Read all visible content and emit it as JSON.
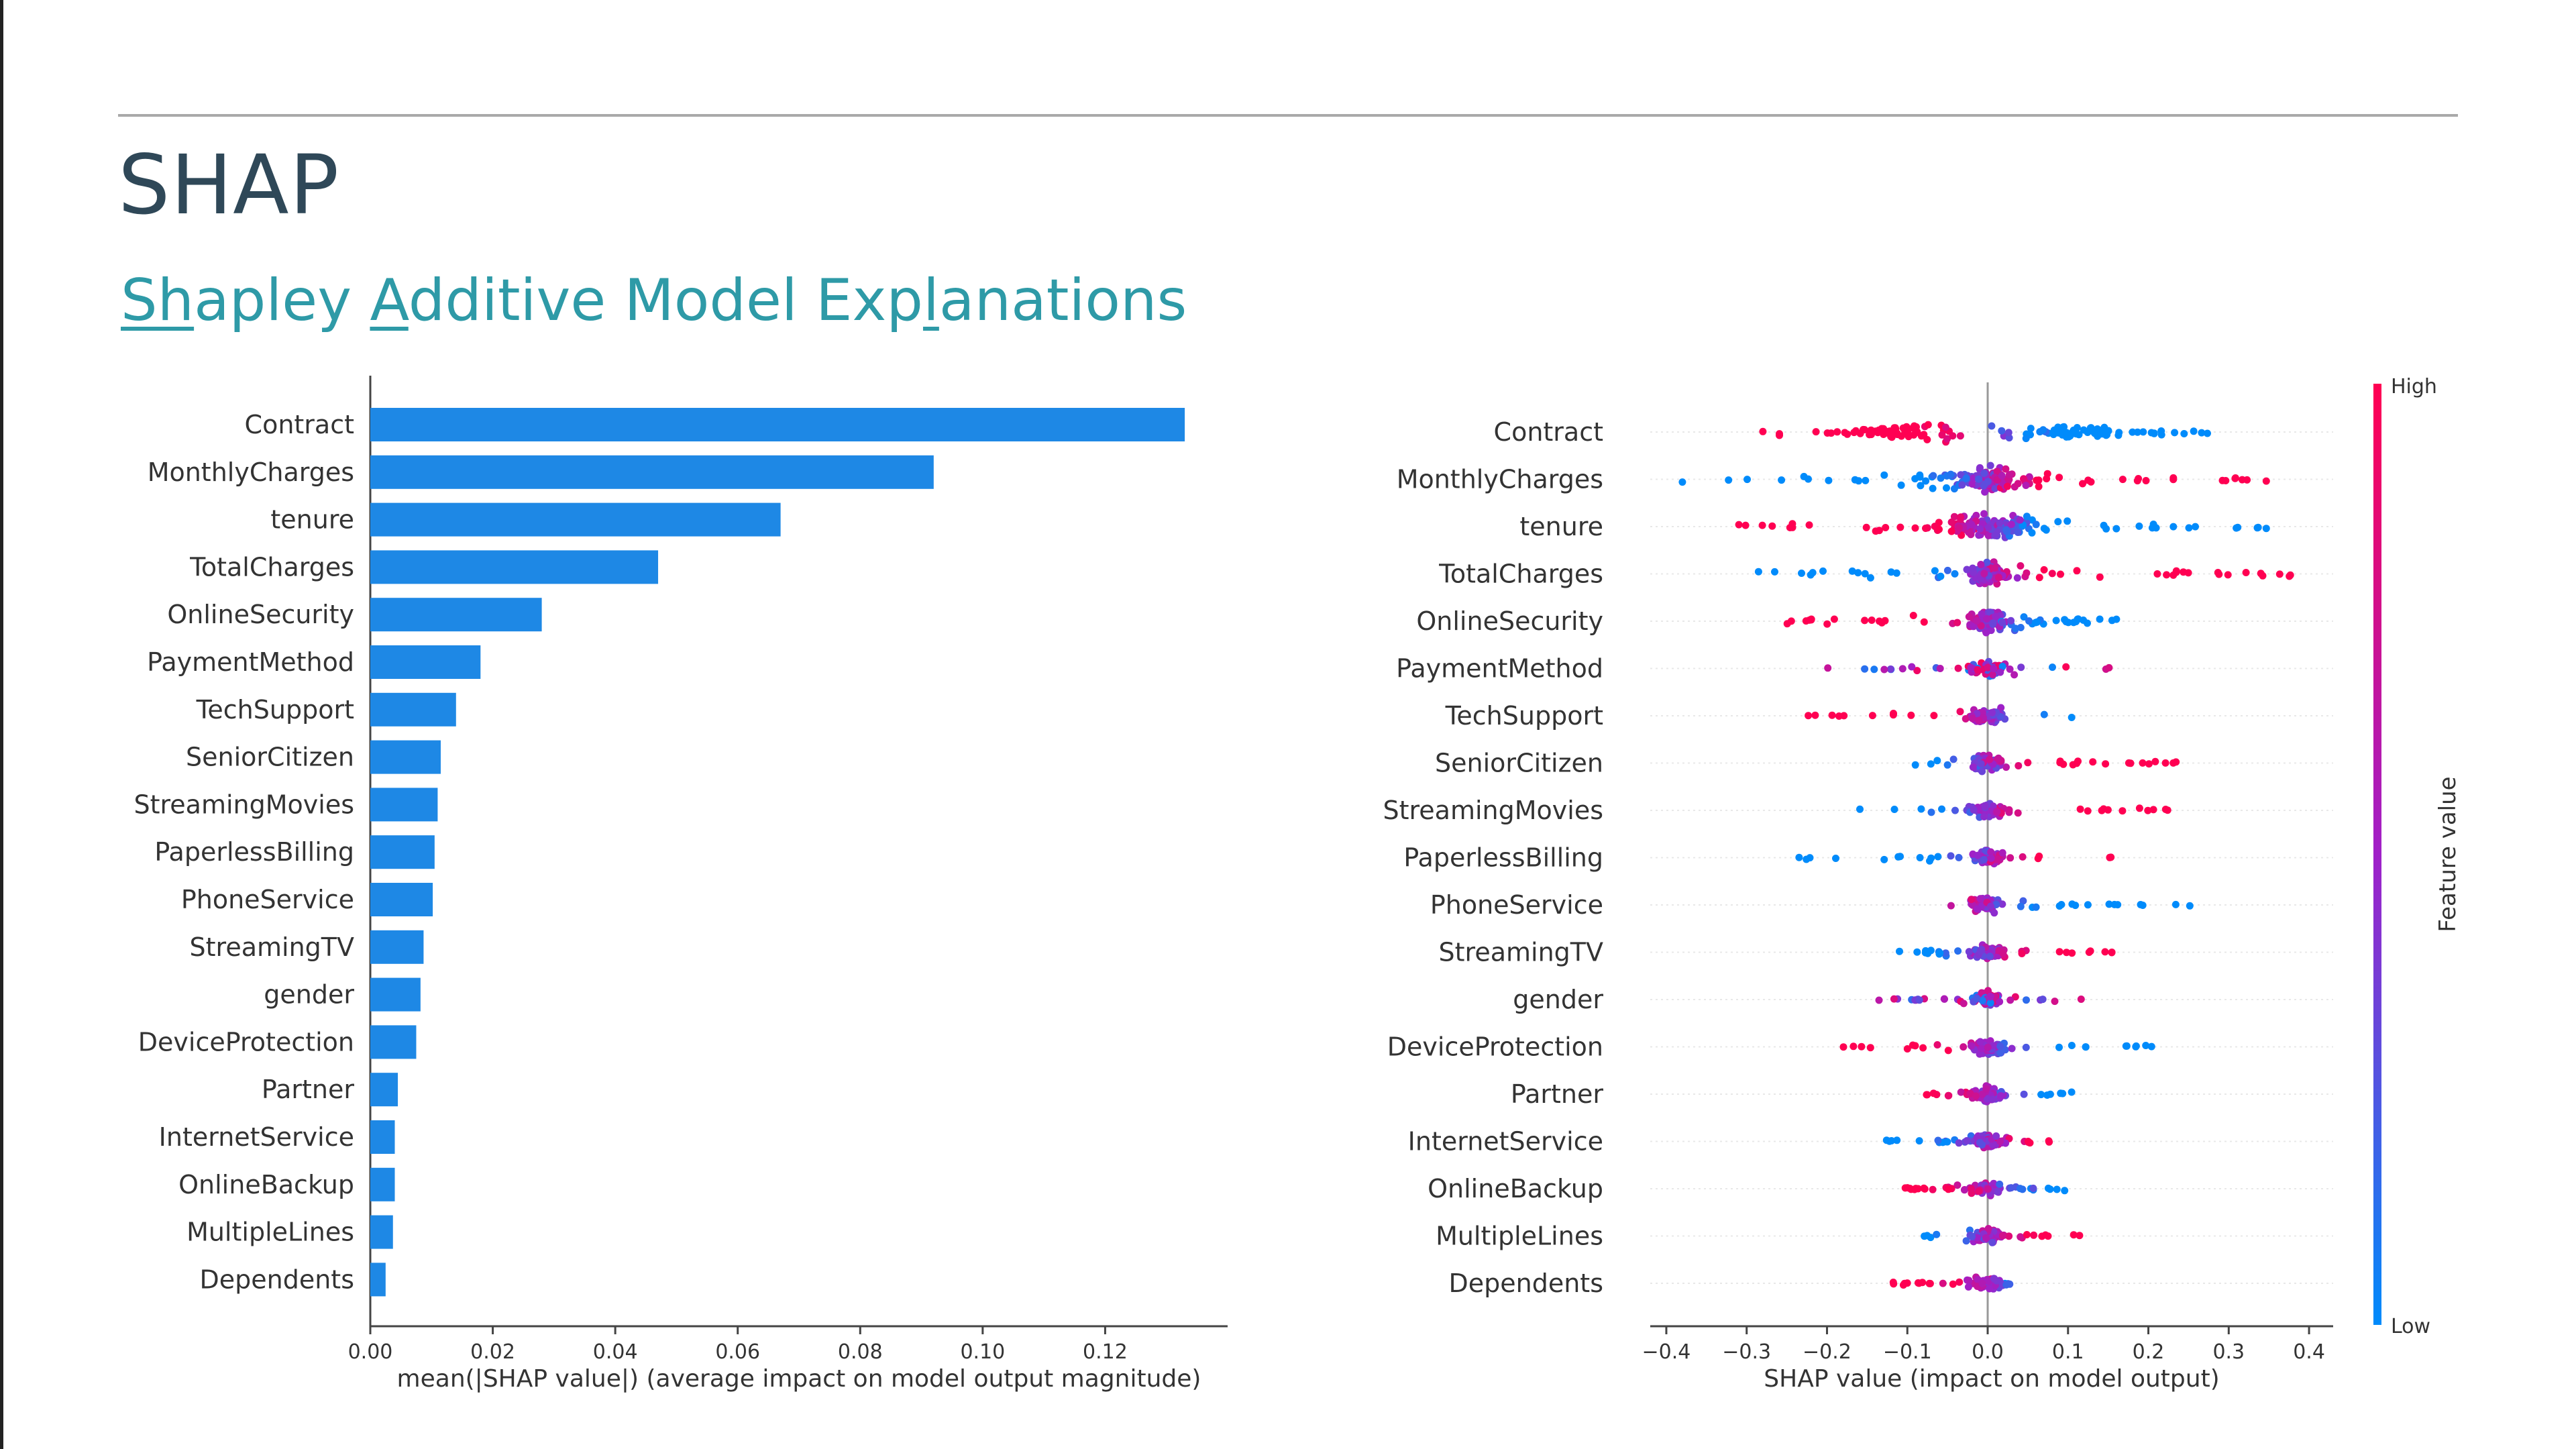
{
  "slide": {
    "title": "SHAP",
    "subtitle_parts": [
      {
        "text": "Sh",
        "underline": true
      },
      {
        "text": "apley ",
        "underline": false
      },
      {
        "text": "A",
        "underline": true
      },
      {
        "text": "dditive Model Exp",
        "underline": false
      },
      {
        "text": "l",
        "underline": true
      },
      {
        "text": "anations",
        "underline": false
      }
    ]
  },
  "colors": {
    "title": "#2f4858",
    "subtitle": "#2e9aa7",
    "bar": "#1e88e5",
    "high": "#ff0052",
    "low": "#008bfb"
  },
  "chart_data": [
    {
      "type": "bar",
      "orientation": "horizontal",
      "categories": [
        "Contract",
        "MonthlyCharges",
        "tenure",
        "TotalCharges",
        "OnlineSecurity",
        "PaymentMethod",
        "TechSupport",
        "SeniorCitizen",
        "StreamingMovies",
        "PaperlessBilling",
        "PhoneService",
        "StreamingTV",
        "gender",
        "DeviceProtection",
        "Partner",
        "InternetService",
        "OnlineBackup",
        "MultipleLines",
        "Dependents"
      ],
      "values": [
        0.133,
        0.092,
        0.067,
        0.047,
        0.028,
        0.018,
        0.014,
        0.0115,
        0.011,
        0.0105,
        0.0102,
        0.0087,
        0.0082,
        0.0075,
        0.0045,
        0.004,
        0.004,
        0.0037,
        0.0025
      ],
      "xlabel": "mean(|SHAP value|) (average impact on model output magnitude)",
      "xticks": [
        "0.00",
        "0.02",
        "0.04",
        "0.06",
        "0.08",
        "0.10",
        "0.12"
      ],
      "xlim": [
        0,
        0.14
      ]
    },
    {
      "type": "scatter",
      "subtype": "beeswarm",
      "categories": [
        "Contract",
        "MonthlyCharges",
        "tenure",
        "TotalCharges",
        "OnlineSecurity",
        "PaymentMethod",
        "TechSupport",
        "SeniorCitizen",
        "StreamingMovies",
        "PaperlessBilling",
        "PhoneService",
        "StreamingTV",
        "gender",
        "DeviceProtection",
        "Partner",
        "InternetService",
        "OnlineBackup",
        "MultipleLines",
        "Dependents"
      ],
      "ranges": [
        [
          -0.28,
          0.28
        ],
        [
          -0.38,
          0.37
        ],
        [
          -0.31,
          0.35
        ],
        [
          -0.3,
          0.39
        ],
        [
          -0.26,
          0.18
        ],
        [
          -0.2,
          0.16
        ],
        [
          -0.23,
          0.12
        ],
        [
          -0.1,
          0.25
        ],
        [
          -0.17,
          0.24
        ],
        [
          -0.25,
          0.17
        ],
        [
          -0.09,
          0.26
        ],
        [
          -0.13,
          0.16
        ],
        [
          -0.14,
          0.12
        ],
        [
          -0.19,
          0.22
        ],
        [
          -0.11,
          0.11
        ],
        [
          -0.14,
          0.09
        ],
        [
          -0.11,
          0.1
        ],
        [
          -0.08,
          0.12
        ],
        [
          -0.12,
          0.03
        ]
      ],
      "xlabel": "SHAP value (impact on model output)",
      "xticks": [
        "−0.4",
        "−0.3",
        "−0.2",
        "−0.1",
        "0.0",
        "0.1",
        "0.2",
        "0.3",
        "0.4"
      ],
      "xlim": [
        -0.42,
        0.43
      ],
      "colorbar": {
        "label": "Feature value",
        "high_label": "High",
        "low_label": "Low"
      }
    }
  ]
}
